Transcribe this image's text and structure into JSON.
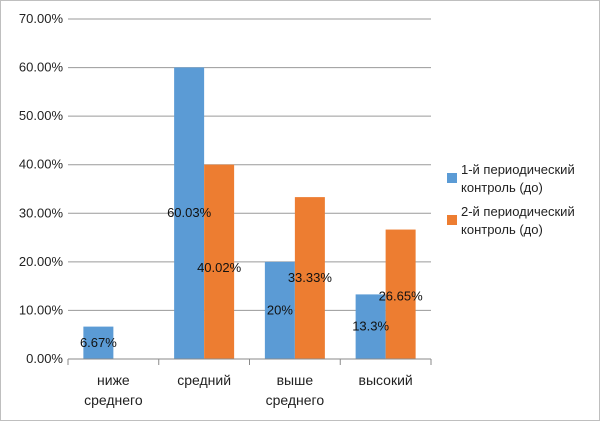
{
  "chart_data": {
    "type": "bar",
    "categories": [
      [
        "ниже",
        "среднего"
      ],
      [
        "средний"
      ],
      [
        "выше",
        "среднего"
      ],
      [
        "высокий"
      ]
    ],
    "series": [
      {
        "name_lines": [
          "1-й периодический",
          "контроль (до)"
        ],
        "color": "#5b9bd5",
        "values": [
          6.67,
          60.03,
          20,
          13.3
        ],
        "labels": [
          "6.67%",
          "60.03%",
          "20%",
          "13.3%"
        ]
      },
      {
        "name_lines": [
          "2-й периодический",
          "контроль (до)"
        ],
        "color": "#ed7d31",
        "values": [
          0,
          40.02,
          33.33,
          26.65
        ],
        "labels": [
          "",
          "40.02%",
          "33.33%",
          "26.65%"
        ]
      }
    ],
    "y_ticks": [
      "0.00%",
      "10.00%",
      "20.00%",
      "30.00%",
      "40.00%",
      "50.00%",
      "60.00%",
      "70.00%"
    ],
    "ylim": [
      0,
      70
    ],
    "grid": true,
    "legend_position": "right"
  }
}
